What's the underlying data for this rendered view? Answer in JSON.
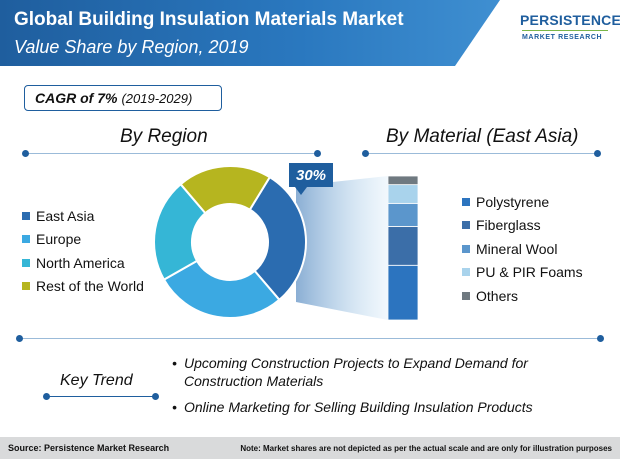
{
  "header": {
    "title": "Global Building Insulation Materials Market",
    "subtitle": "Value Share by Region, 2019"
  },
  "logo": {
    "name": "PERSISTENCE",
    "tagline": "MARKET RESEARCH"
  },
  "cagr": {
    "main": "CAGR of 7%",
    "period": "(2019-2029)"
  },
  "sections": {
    "region_heading": "By Region",
    "material_heading": "By Material (East Asia)"
  },
  "callout": "30%",
  "chart_data": [
    {
      "type": "pie",
      "donut": true,
      "categories": [
        "East Asia",
        "Europe",
        "North America",
        "Rest of the World"
      ],
      "values": [
        30,
        28,
        22,
        20
      ],
      "colors": [
        "#2b6cb0",
        "#3ba9e2",
        "#35b6d6",
        "#b6b51f"
      ],
      "annotation": "30%"
    },
    {
      "type": "bar",
      "stacked": true,
      "title": "By Material (East Asia)",
      "categories": [
        "Polystyrene",
        "Fiberglass",
        "Mineral Wool",
        "PU & PIR Foams",
        "Others"
      ],
      "values": [
        38,
        27,
        16,
        13,
        6
      ],
      "colors": [
        "#2c74bf",
        "#3b6ea8",
        "#5b96cc",
        "#a9d3ec",
        "#6f7980"
      ]
    }
  ],
  "key_trend": {
    "label": "Key Trend",
    "items": [
      "Upcoming Construction Projects to Expand Demand for Construction Materials",
      "Online Marketing for Selling Building Insulation Products"
    ]
  },
  "footer": {
    "source": "Source: Persistence Market Research",
    "note": "Note: Market shares are not depicted as per the actual scale and are only for illustration purposes"
  }
}
